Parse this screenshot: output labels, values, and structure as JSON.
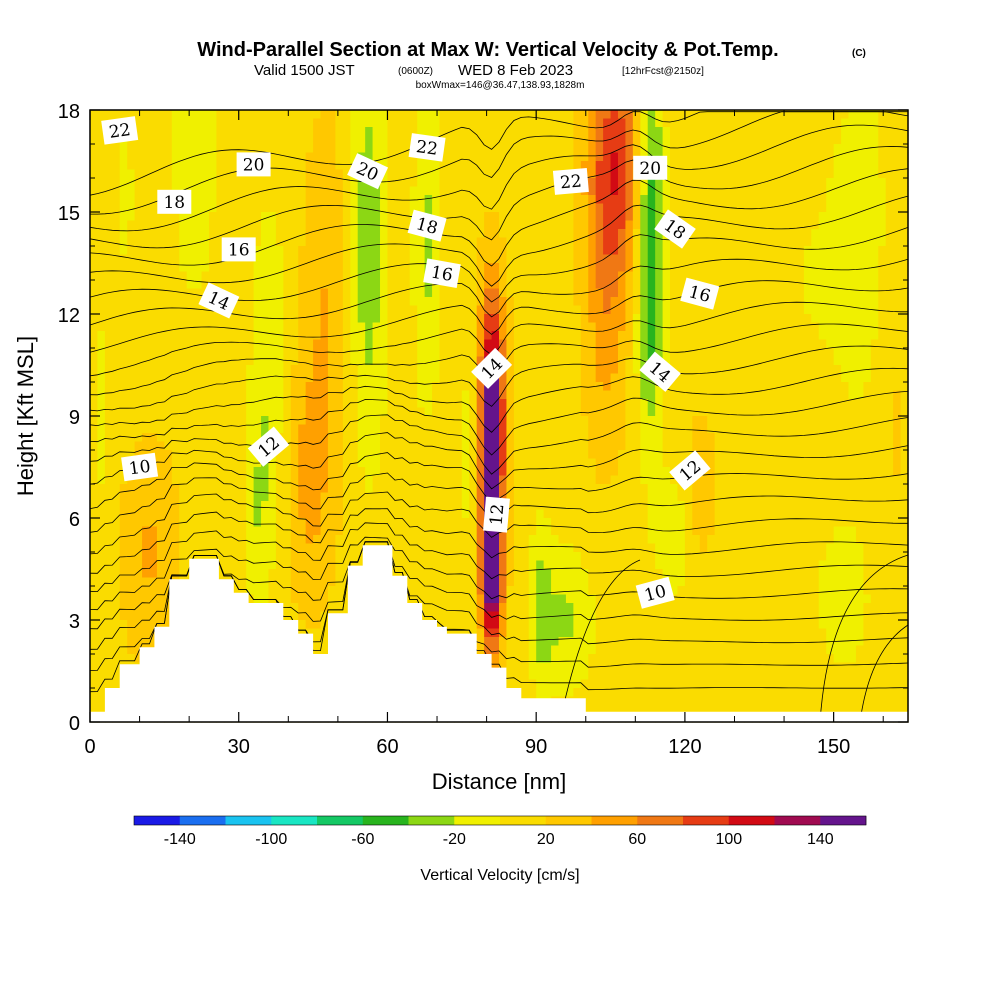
{
  "header": {
    "title": "Wind-Parallel Section at Max W: Vertical Velocity & Pot.Temp.",
    "title_mark": "(C)",
    "valid_prefix": "Valid 1500 JST",
    "valid_utc": "(0600Z)",
    "valid_date": "WED 8 Feb 2023",
    "forecast": "[12hrFcst@2150z]",
    "box_info": "boxWmax=146@36.47,138.93,1828m"
  },
  "chart_data": {
    "type": "heatmap",
    "xlabel": "Distance [nm]",
    "ylabel": "Height [Kft MSL]",
    "xlim": [
      0,
      165
    ],
    "ylim": [
      0,
      18
    ],
    "x_ticks": [
      "0",
      "30",
      "60",
      "90",
      "120",
      "150"
    ],
    "y_ticks": [
      "0",
      "3",
      "6",
      "9",
      "12",
      "15",
      "18"
    ],
    "colorbar": {
      "label": "Vertical Velocity [cm/s]",
      "tick_labels": [
        "-140",
        "-100",
        "-60",
        "-20",
        "20",
        "60",
        "100",
        "140"
      ],
      "boundaries": [
        -160,
        -140,
        -120,
        -100,
        -80,
        -60,
        -40,
        -20,
        0,
        20,
        40,
        60,
        80,
        100,
        120,
        140,
        160
      ],
      "colors": [
        "#1a1ae6",
        "#1a6ef0",
        "#19c3f0",
        "#19e6c3",
        "#14c864",
        "#28b41e",
        "#8cd714",
        "#f0f000",
        "#fadc00",
        "#ffc800",
        "#ffa000",
        "#f07814",
        "#e63c14",
        "#d20a14",
        "#a00a50",
        "#64148c"
      ]
    },
    "terrain_profile": [
      [
        0,
        0.3
      ],
      [
        3,
        0.3
      ],
      [
        3,
        1.0
      ],
      [
        6,
        1.0
      ],
      [
        6,
        1.7
      ],
      [
        10,
        1.7
      ],
      [
        10,
        2.2
      ],
      [
        13,
        2.2
      ],
      [
        13,
        2.8
      ],
      [
        16,
        2.8
      ],
      [
        16,
        4.2
      ],
      [
        20,
        4.2
      ],
      [
        20,
        4.8
      ],
      [
        26,
        4.8
      ],
      [
        26,
        4.2
      ],
      [
        29,
        4.2
      ],
      [
        29,
        3.8
      ],
      [
        32,
        3.8
      ],
      [
        32,
        3.5
      ],
      [
        39,
        3.5
      ],
      [
        39,
        3.0
      ],
      [
        42,
        3.0
      ],
      [
        42,
        2.6
      ],
      [
        45,
        2.6
      ],
      [
        45,
        2.0
      ],
      [
        48,
        2.0
      ],
      [
        48,
        3.2
      ],
      [
        52,
        3.2
      ],
      [
        52,
        4.6
      ],
      [
        55,
        4.6
      ],
      [
        55,
        5.2
      ],
      [
        61,
        5.2
      ],
      [
        61,
        4.3
      ],
      [
        64,
        4.3
      ],
      [
        64,
        3.5
      ],
      [
        67,
        3.5
      ],
      [
        67,
        3.0
      ],
      [
        70,
        3.0
      ],
      [
        70,
        2.8
      ],
      [
        72,
        2.8
      ],
      [
        72,
        2.6
      ],
      [
        78,
        2.6
      ],
      [
        78,
        2.0
      ],
      [
        81,
        2.0
      ],
      [
        81,
        1.6
      ],
      [
        84,
        1.6
      ],
      [
        84,
        1.0
      ],
      [
        87,
        1.0
      ],
      [
        87,
        0.7
      ],
      [
        90,
        0.7
      ],
      [
        90,
        0.7
      ],
      [
        100,
        0.7
      ],
      [
        100,
        0.3
      ],
      [
        165,
        0.3
      ]
    ],
    "theta_contour_labels": [
      {
        "text": "22",
        "x": 6,
        "y": 17.4,
        "angle": -8
      },
      {
        "text": "20",
        "x": 33,
        "y": 16.4,
        "angle": 0
      },
      {
        "text": "20",
        "x": 56,
        "y": 16.2,
        "angle": 25
      },
      {
        "text": "22",
        "x": 68,
        "y": 16.9,
        "angle": 8
      },
      {
        "text": "22",
        "x": 97,
        "y": 15.9,
        "angle": -5
      },
      {
        "text": "20",
        "x": 113,
        "y": 16.3,
        "angle": 0
      },
      {
        "text": "18",
        "x": 17,
        "y": 15.3,
        "angle": 0
      },
      {
        "text": "18",
        "x": 68,
        "y": 14.6,
        "angle": 15
      },
      {
        "text": "18",
        "x": 118,
        "y": 14.5,
        "angle": 35
      },
      {
        "text": "16",
        "x": 30,
        "y": 13.9,
        "angle": 0
      },
      {
        "text": "16",
        "x": 71,
        "y": 13.2,
        "angle": 10
      },
      {
        "text": "16",
        "x": 123,
        "y": 12.6,
        "angle": 15
      },
      {
        "text": "14",
        "x": 26,
        "y": 12.4,
        "angle": 25
      },
      {
        "text": "14",
        "x": 81,
        "y": 10.4,
        "angle": -45
      },
      {
        "text": "14",
        "x": 115,
        "y": 10.3,
        "angle": 40
      },
      {
        "text": "12",
        "x": 36,
        "y": 8.1,
        "angle": -40
      },
      {
        "text": "12",
        "x": 82,
        "y": 6.1,
        "angle": -85
      },
      {
        "text": "12",
        "x": 121,
        "y": 7.4,
        "angle": -40
      },
      {
        "text": "10",
        "x": 10,
        "y": 7.5,
        "angle": -8
      },
      {
        "text": "10",
        "x": 114,
        "y": 3.8,
        "angle": -15
      }
    ],
    "w_field_features": [
      {
        "x": 81,
        "y": 7.5,
        "sx": 1.6,
        "sy": 2.4,
        "w": 150
      },
      {
        "x": 81,
        "y": 10.5,
        "sx": 2.0,
        "sy": 2.2,
        "w": 60
      },
      {
        "x": 81,
        "y": 4.0,
        "sx": 1.5,
        "sy": 1.4,
        "w": 110
      },
      {
        "x": 106,
        "y": 16.5,
        "sx": 4.0,
        "sy": 2.4,
        "w": 80
      },
      {
        "x": 104,
        "y": 12.0,
        "sx": 3.0,
        "sy": 3.0,
        "w": 35
      },
      {
        "x": 113,
        "y": 15.5,
        "sx": 2.0,
        "sy": 3.5,
        "w": -65
      },
      {
        "x": 113,
        "y": 11.0,
        "sx": 1.8,
        "sy": 2.5,
        "w": -30
      },
      {
        "x": 56,
        "y": 14.0,
        "sx": 2.8,
        "sy": 4.5,
        "w": -45
      },
      {
        "x": 68,
        "y": 14.0,
        "sx": 2.0,
        "sy": 3.5,
        "w": -35
      },
      {
        "x": 48,
        "y": 12.0,
        "sx": 3.5,
        "sy": 4.0,
        "w": 28
      },
      {
        "x": 44,
        "y": 7.0,
        "sx": 3.0,
        "sy": 2.5,
        "w": 30
      },
      {
        "x": 36,
        "y": 11.0,
        "sx": 2.5,
        "sy": 3.0,
        "w": -30
      },
      {
        "x": 34,
        "y": 6.0,
        "sx": 2.2,
        "sy": 2.2,
        "w": -28
      },
      {
        "x": 21,
        "y": 16.5,
        "sx": 3.0,
        "sy": 2.8,
        "w": -30
      },
      {
        "x": 12,
        "y": 5.0,
        "sx": 4.0,
        "sy": 2.2,
        "w": 30
      },
      {
        "x": 96,
        "y": 3.0,
        "sx": 4.0,
        "sy": 1.5,
        "w": -35
      },
      {
        "x": 91,
        "y": 3.5,
        "sx": 1.5,
        "sy": 2.0,
        "w": -30
      },
      {
        "x": 77,
        "y": 8.0,
        "sx": 1.5,
        "sy": 2.5,
        "w": -25
      },
      {
        "x": 118,
        "y": 5.5,
        "sx": 3.5,
        "sy": 1.5,
        "w": -22
      },
      {
        "x": 123,
        "y": 6.8,
        "sx": 2.0,
        "sy": 1.5,
        "w": 30
      },
      {
        "x": 145,
        "y": 13.0,
        "sx": 8.0,
        "sy": 4.0,
        "w": -12
      },
      {
        "x": 156,
        "y": 14.5,
        "sx": 4.0,
        "sy": 4.0,
        "w": -18
      },
      {
        "x": 152,
        "y": 3.5,
        "sx": 5.0,
        "sy": 2.0,
        "w": -18
      },
      {
        "x": 135,
        "y": 4.0,
        "sx": 4.0,
        "sy": 2.0,
        "w": -10
      },
      {
        "x": 7,
        "y": 15.5,
        "sx": 2.5,
        "sy": 3.0,
        "w": -14
      },
      {
        "x": 2,
        "y": 9.0,
        "sx": 1.5,
        "sy": 3.0,
        "w": -16
      },
      {
        "x": 162,
        "y": 9.0,
        "sx": 2.0,
        "sy": 3.0,
        "w": 12
      }
    ]
  }
}
